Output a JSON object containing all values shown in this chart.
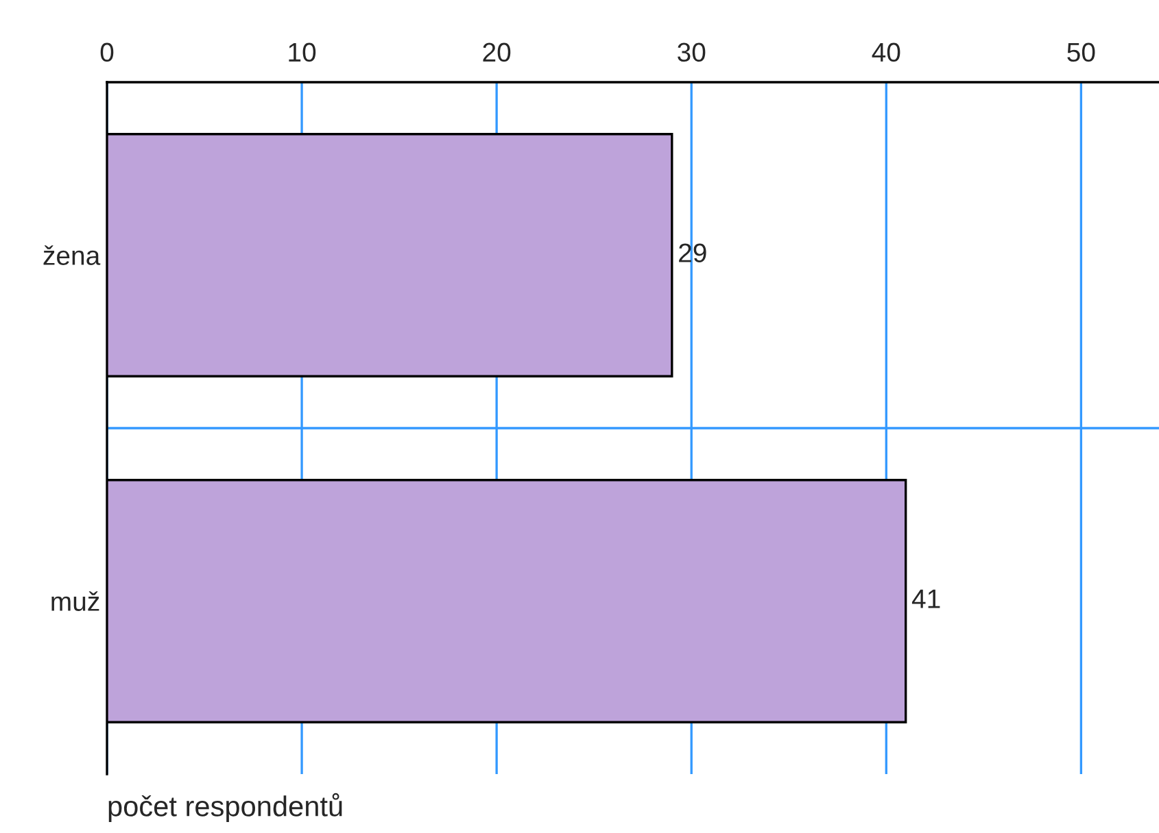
{
  "chart_data": {
    "type": "bar",
    "orientation": "horizontal",
    "categories": [
      "žena",
      "muž"
    ],
    "values": [
      29,
      41
    ],
    "color": "#bea3da",
    "xlim": [
      0,
      54
    ],
    "xticks": [
      0,
      10,
      20,
      30,
      40,
      50
    ],
    "xlabel": "počet respondentů",
    "data_labels": true,
    "grid": true
  }
}
